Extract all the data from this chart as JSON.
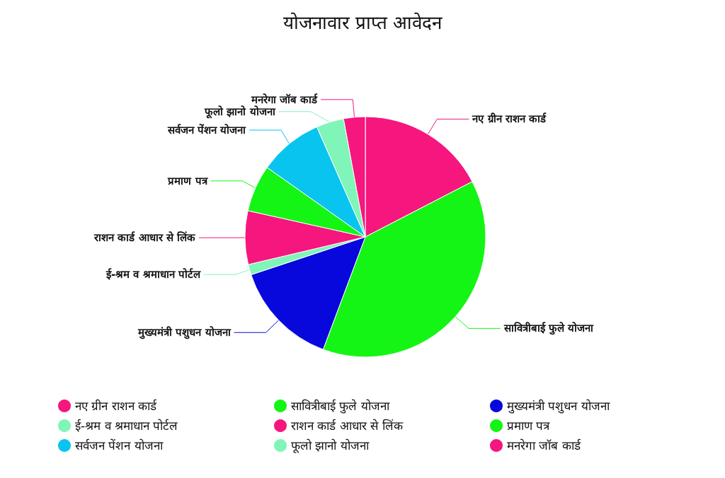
{
  "chart_data": {
    "type": "pie",
    "title": "योजनावार प्राप्त आवेदन",
    "categories": [
      "नए ग्रीन राशन कार्ड",
      "सावित्रीबाई फुले योजना",
      "मुख्यमंत्री पशुधन योजना",
      "ई-श्रम व श्रमाधान पोर्टल",
      "राशन कार्ड आधार से लिंक",
      "प्रमाण पत्र",
      "सर्वजन पेंशन योजना",
      "फूलो झानो योजना",
      "मनरेगा जॉब कार्ड"
    ],
    "values": [
      17.4,
      38.3,
      14.2,
      1.4,
      7.2,
      6.3,
      8.6,
      3.7,
      2.9
    ],
    "colors": [
      "#f5167e",
      "#15f515",
      "#0808dc",
      "#80f5b8",
      "#f5167e",
      "#15f515",
      "#0ac4f0",
      "#80f5b8",
      "#f5167e"
    ],
    "legend": "bottom"
  }
}
